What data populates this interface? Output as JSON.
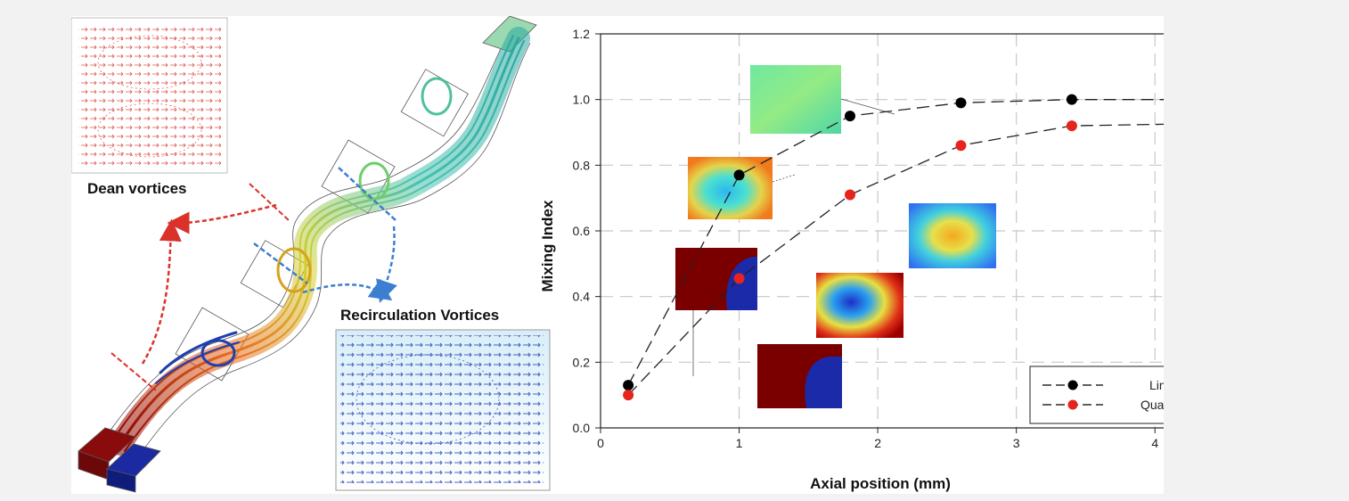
{
  "labels": {
    "dean_vortices": "Dean vortices",
    "recirculation_vortices": "Recirculation Vortices"
  },
  "colors": {
    "linear": "#000000",
    "quadratic": "#e8221c",
    "dean_arrow": "#d9322b",
    "recirc_arrow": "#3c7fd1",
    "map_background": "#0f1a8a",
    "map_high": "#800000"
  },
  "chart_data": {
    "type": "line",
    "title": "",
    "xlabel": "Axial position (mm)",
    "ylabel": "Mixing Index",
    "xlim": [
      0,
      4.5
    ],
    "ylim": [
      0,
      1.2
    ],
    "xticks": [
      "0",
      "1",
      "2",
      "3",
      "4"
    ],
    "yticks": [
      "0.0",
      "0.2",
      "0.4",
      "0.6",
      "0.8",
      "1.0",
      "1.2"
    ],
    "grid": true,
    "legend_position": "bottom-right",
    "series": [
      {
        "name": "Linear",
        "color": "#000000",
        "x": [
          0.2,
          1.0,
          1.8,
          2.6,
          3.4,
          4.1
        ],
        "y": [
          0.13,
          0.77,
          0.95,
          0.99,
          1.0,
          1.0
        ]
      },
      {
        "name": "Quadratic",
        "color": "#e8221c",
        "x": [
          0.2,
          1.0,
          1.8,
          2.6,
          3.4,
          4.1
        ],
        "y": [
          0.1,
          0.455,
          0.71,
          0.86,
          0.92,
          0.925
        ]
      }
    ]
  }
}
